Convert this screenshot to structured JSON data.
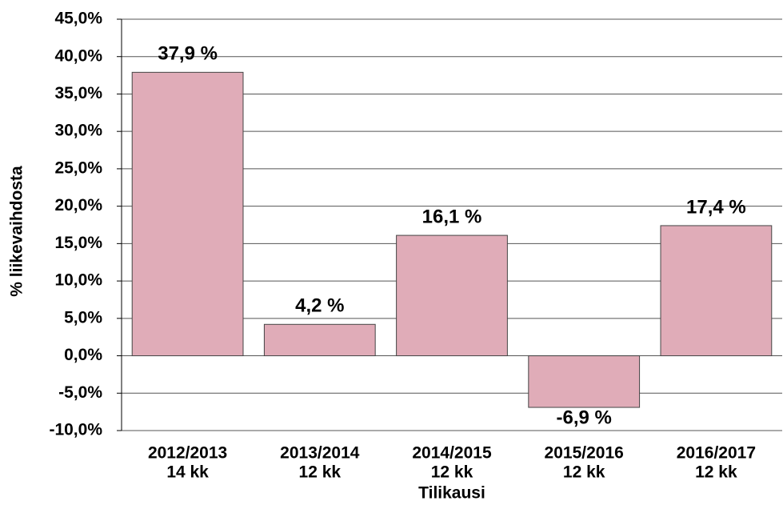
{
  "chart_data": {
    "type": "bar",
    "x_label": "Tilikausi",
    "y_label": "% liikevaihdosta",
    "categories": [
      [
        "2012/2013",
        "14 kk"
      ],
      [
        "2013/2014",
        "12 kk"
      ],
      [
        "2014/2015",
        "12 kk"
      ],
      [
        "2015/2016",
        "12 kk"
      ],
      [
        "2016/2017",
        "12 kk"
      ]
    ],
    "values": [
      37.9,
      4.2,
      16.1,
      -6.9,
      17.4
    ],
    "value_labels": [
      "37,9 %",
      "4,2 %",
      "16,1 %",
      "-6,9 %",
      "17,4 %"
    ],
    "color": "#e0acb8",
    "ylim": [
      -10,
      45
    ],
    "yticks": [
      {
        "value": -10,
        "label": "-10,0%"
      },
      {
        "value": -5,
        "label": "-5,0%"
      },
      {
        "value": 0,
        "label": "0,0%"
      },
      {
        "value": 5,
        "label": "5,0%"
      },
      {
        "value": 10,
        "label": "10,0%"
      },
      {
        "value": 15,
        "label": "15,0%"
      },
      {
        "value": 20,
        "label": "20,0%"
      },
      {
        "value": 25,
        "label": "25,0%"
      },
      {
        "value": 30,
        "label": "30,0%"
      },
      {
        "value": 35,
        "label": "35,0%"
      },
      {
        "value": 40,
        "label": "40,0%"
      },
      {
        "value": 45,
        "label": "45,0%"
      }
    ],
    "grid": true
  }
}
